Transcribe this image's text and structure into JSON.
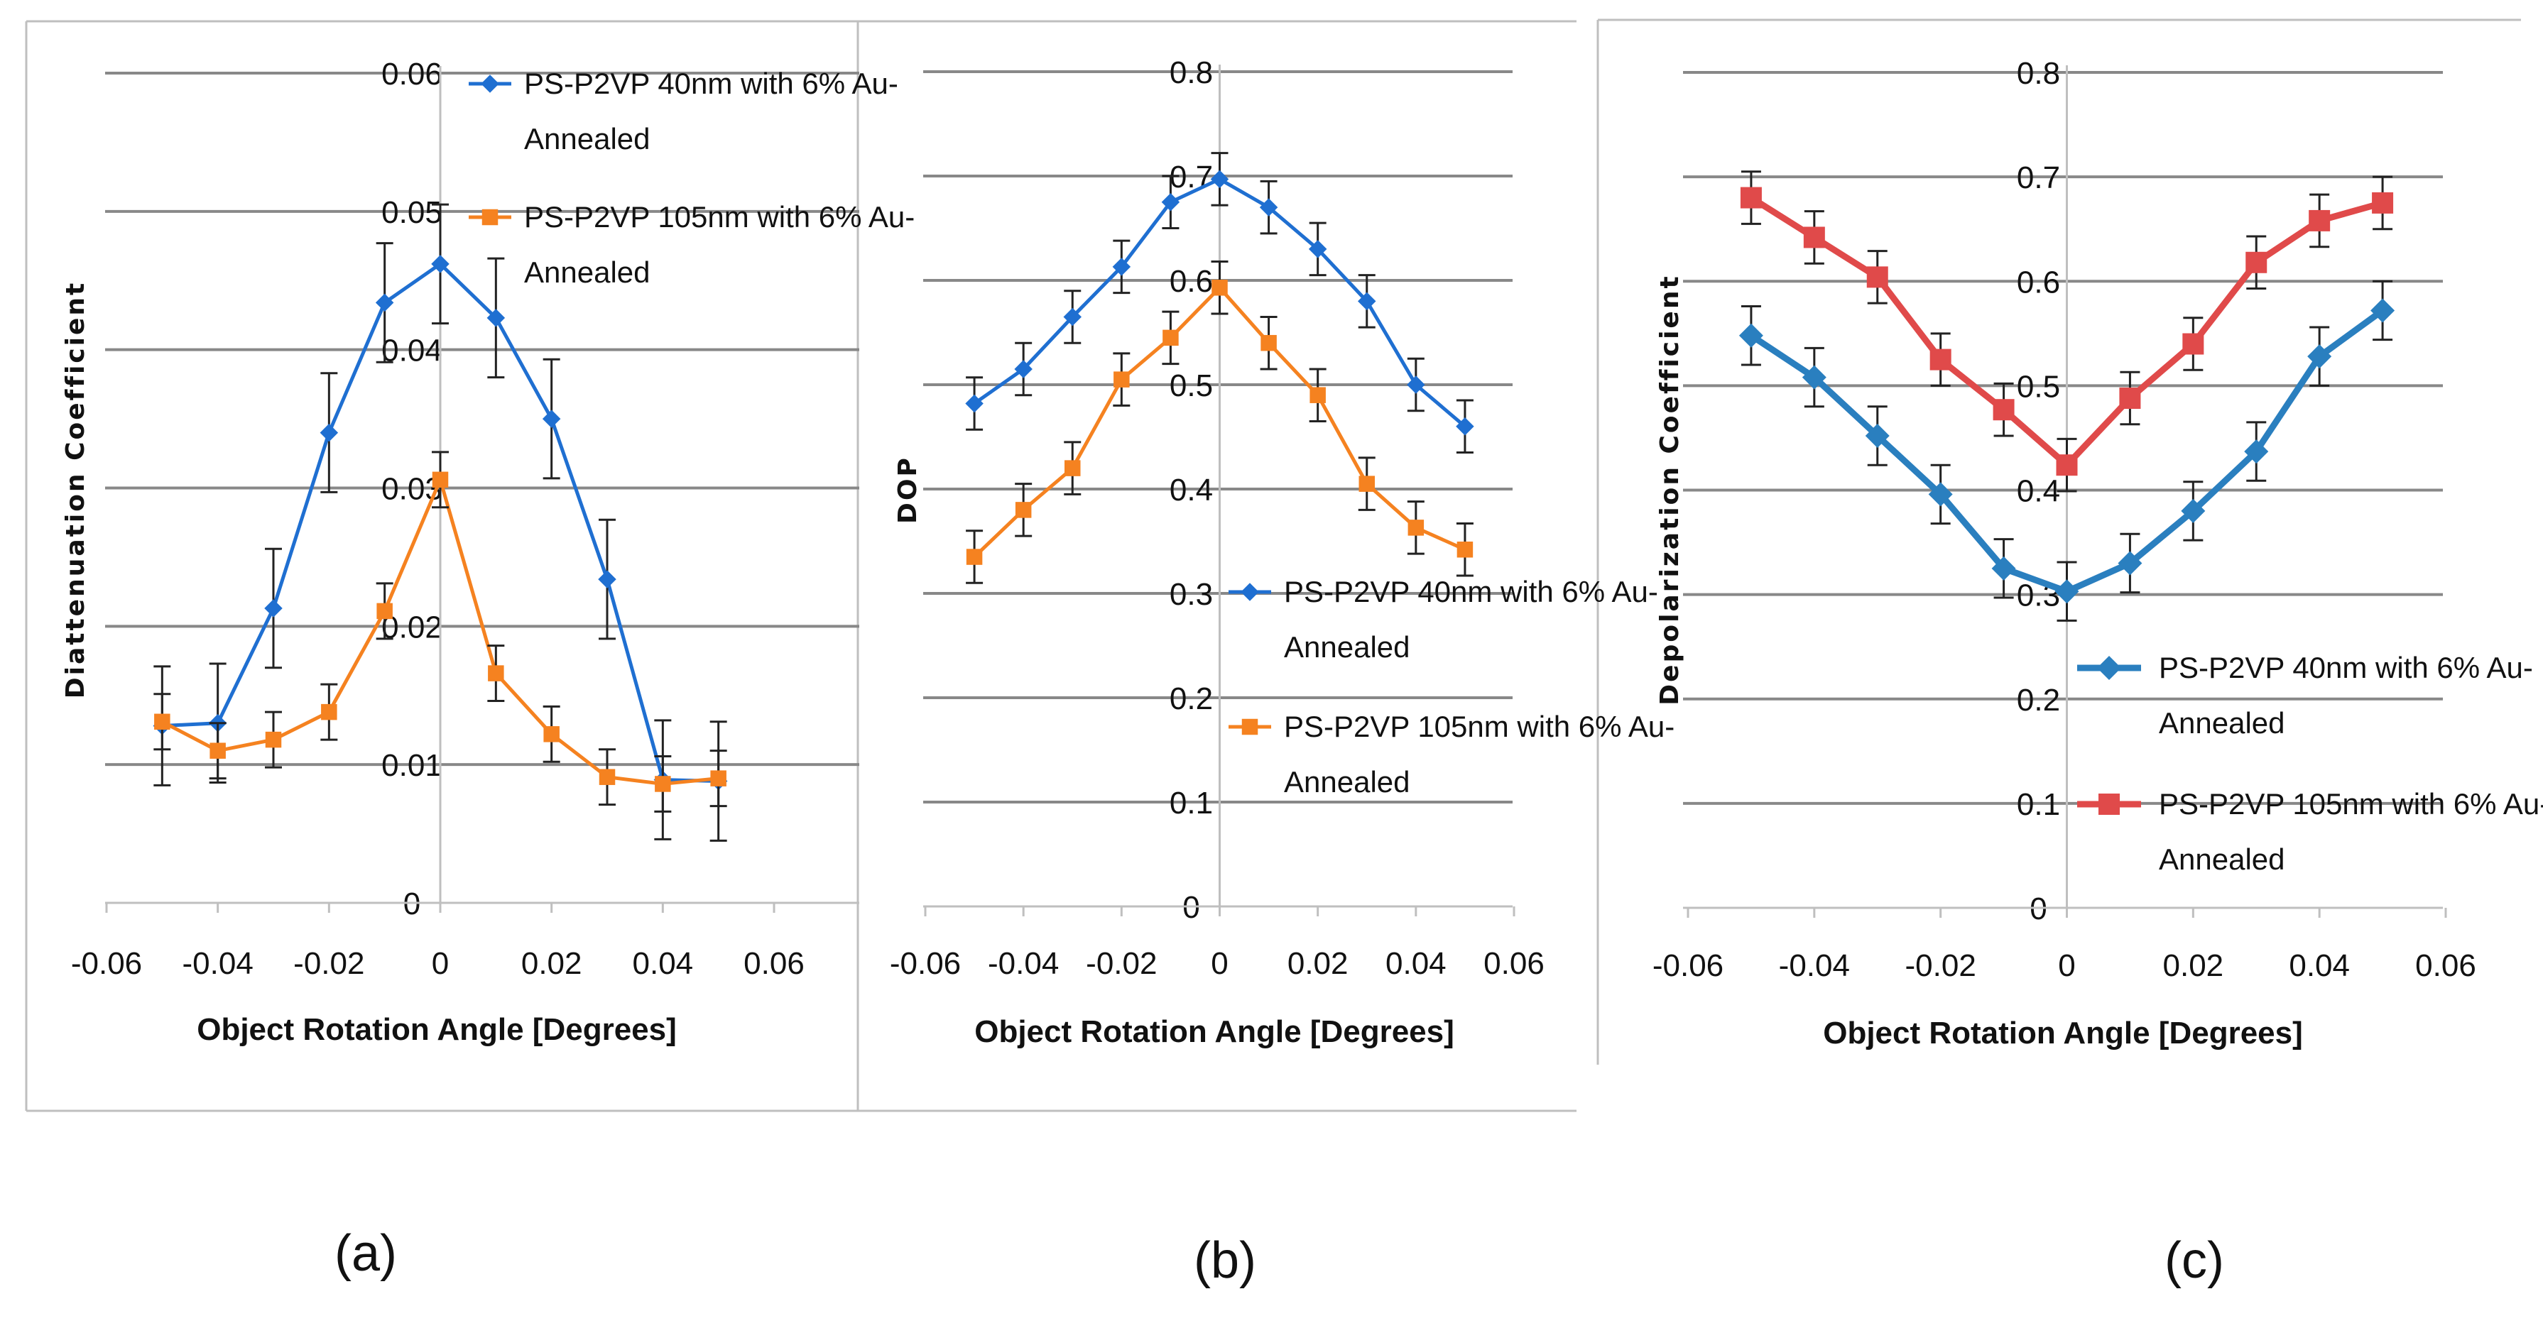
{
  "colors": {
    "blue": "#1f6fd1",
    "orange": "#f58220",
    "c_blue": "#2a7fbf",
    "c_red": "#e04a4a"
  },
  "panel_labels": [
    "(a)",
    "(b)",
    "(c)"
  ],
  "chart_data": [
    {
      "type": "line",
      "title": "",
      "xlabel": "Object Rotation Angle [Degrees]",
      "ylabel": "Diattenuation Coefficient",
      "xlim": [
        -0.06,
        0.06
      ],
      "ylim": [
        0,
        0.06
      ],
      "xticks": [
        "-0.06",
        "-0.04",
        "-0.02",
        "0",
        "0.02",
        "0.04",
        "0.06"
      ],
      "yticks": [
        "0",
        "0.01",
        "0.02",
        "0.03",
        "0.04",
        "0.05",
        "0.06"
      ],
      "x": [
        -0.05,
        -0.04,
        -0.03,
        -0.02,
        -0.01,
        0,
        0.01,
        0.02,
        0.03,
        0.04,
        0.05
      ],
      "series": [
        {
          "name": "PS-P2VP 40nm with 6% Au-Annealed",
          "legend_lines": [
            "PS-P2VP 40nm with 6% Au-",
            "Annealed"
          ],
          "values": [
            0.0128,
            0.013,
            0.0213,
            0.034,
            0.0434,
            0.0462,
            0.0423,
            0.035,
            0.0234,
            0.0089,
            0.0088
          ],
          "errors": [
            0.0043,
            0.0043,
            0.0043,
            0.0043,
            0.0043,
            0.0043,
            0.0043,
            0.0043,
            0.0043,
            0.0043,
            0.0043
          ],
          "color": "#1f6fd1",
          "marker": "diamond"
        },
        {
          "name": "PS-P2VP 105nm with 6% Au-Annealed",
          "legend_lines": [
            "PS-P2VP 105nm with 6% Au-",
            "Annealed"
          ],
          "values": [
            0.0131,
            0.011,
            0.0118,
            0.0138,
            0.0211,
            0.0306,
            0.0166,
            0.0122,
            0.0091,
            0.0086,
            0.009
          ],
          "errors": [
            0.002,
            0.002,
            0.002,
            0.002,
            0.002,
            0.002,
            0.002,
            0.002,
            0.002,
            0.002,
            0.002
          ],
          "color": "#f58220",
          "marker": "square"
        }
      ]
    },
    {
      "type": "line",
      "title": "",
      "xlabel": "Object Rotation Angle [Degrees]",
      "ylabel": "DOP",
      "xlim": [
        -0.06,
        0.06
      ],
      "ylim": [
        0,
        0.8
      ],
      "xticks": [
        "-0.06",
        "-0.04",
        "-0.02",
        "0",
        "0.02",
        "0.04",
        "0.06"
      ],
      "yticks": [
        "0",
        "0.1",
        "0.2",
        "0.3",
        "0.4",
        "0.5",
        "0.6",
        "0.7",
        "0.8"
      ],
      "x": [
        -0.05,
        -0.04,
        -0.03,
        -0.02,
        -0.01,
        0,
        0.01,
        0.02,
        0.03,
        0.04,
        0.05
      ],
      "series": [
        {
          "name": "PS-P2VP 40nm with 6% Au-Annealed",
          "legend_lines": [
            "PS-P2VP 40nm with 6% Au-",
            "Annealed"
          ],
          "values": [
            0.482,
            0.515,
            0.565,
            0.613,
            0.675,
            0.697,
            0.67,
            0.63,
            0.58,
            0.5,
            0.46
          ],
          "errors": [
            0.025,
            0.025,
            0.025,
            0.025,
            0.025,
            0.025,
            0.025,
            0.025,
            0.025,
            0.025,
            0.025
          ],
          "color": "#1f6fd1",
          "marker": "diamond"
        },
        {
          "name": "PS-P2VP 105nm with 6% Au-Annealed",
          "legend_lines": [
            "PS-P2VP 105nm with 6% Au-",
            "Annealed"
          ],
          "values": [
            0.335,
            0.38,
            0.42,
            0.505,
            0.545,
            0.593,
            0.54,
            0.49,
            0.405,
            0.363,
            0.342
          ],
          "errors": [
            0.025,
            0.025,
            0.025,
            0.025,
            0.025,
            0.025,
            0.025,
            0.025,
            0.025,
            0.025,
            0.025
          ],
          "color": "#f58220",
          "marker": "square"
        }
      ]
    },
    {
      "type": "line",
      "title": "",
      "xlabel": "Object Rotation Angle [Degrees]",
      "ylabel": "Depolarization Coefficient",
      "xlim": [
        -0.06,
        0.06
      ],
      "ylim": [
        0,
        0.8
      ],
      "xticks": [
        "-0.06",
        "-0.04",
        "-0.02",
        "0",
        "0.02",
        "0.04",
        "0.06"
      ],
      "yticks": [
        "0",
        "0.1",
        "0.2",
        "0.3",
        "0.4",
        "0.5",
        "0.6",
        "0.7",
        "0.8"
      ],
      "x": [
        -0.05,
        -0.04,
        -0.03,
        -0.02,
        -0.01,
        0,
        0.01,
        0.02,
        0.03,
        0.04,
        0.05
      ],
      "series": [
        {
          "name": "PS-P2VP 40nm with 6% Au-Annealed",
          "legend_lines": [
            "PS-P2VP 40nm with 6% Au-",
            "Annealed"
          ],
          "values": [
            0.548,
            0.508,
            0.452,
            0.396,
            0.325,
            0.303,
            0.33,
            0.38,
            0.437,
            0.528,
            0.572
          ],
          "errors": [
            0.028,
            0.028,
            0.028,
            0.028,
            0.028,
            0.028,
            0.028,
            0.028,
            0.028,
            0.028,
            0.028
          ],
          "color": "#2a7fbf",
          "marker": "diamond"
        },
        {
          "name": "PS-P2VP 105nm with 6% Au-Annealed",
          "legend_lines": [
            "PS-P2VP 105nm with 6% Au-",
            "Annealed"
          ],
          "values": [
            0.68,
            0.642,
            0.604,
            0.525,
            0.477,
            0.424,
            0.488,
            0.54,
            0.618,
            0.658,
            0.675
          ],
          "errors": [
            0.025,
            0.025,
            0.025,
            0.025,
            0.025,
            0.025,
            0.025,
            0.025,
            0.025,
            0.025,
            0.025
          ],
          "color": "#e04a4a",
          "marker": "square"
        }
      ]
    }
  ]
}
